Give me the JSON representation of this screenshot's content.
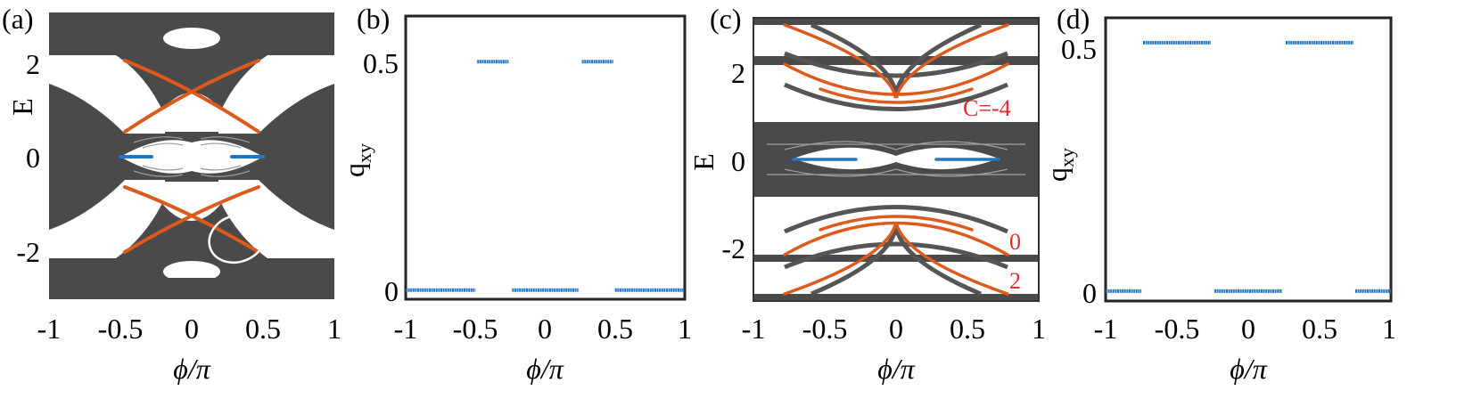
{
  "figure": {
    "colors": {
      "spectrum": "#4a4a4a",
      "edge_orange": "#dd5a1e",
      "q_blue": "#1f77c9",
      "annotation_red": "#e8292b",
      "ring": "#ffffff"
    }
  },
  "chart_data": [
    {
      "panel": "(a)",
      "type": "line",
      "xlabel": "ϕ/π",
      "ylabel": "E",
      "xlim": [
        -1,
        1
      ],
      "ylim": [
        -3,
        3
      ],
      "xticks": [
        "-1",
        "-0.5",
        "0",
        "0.5",
        "1"
      ],
      "yticks": [
        "-2",
        "0",
        "2"
      ],
      "bulk_bands": "dark gray continuum with gaps near E = ±2 and E = 0",
      "series": [
        {
          "style": "orange",
          "x": [
            -0.45,
            0.45
          ],
          "y": [
            1.4,
            1.4
          ],
          "shape": "crossing pair centered at E≈1.05"
        },
        {
          "style": "orange",
          "x": [
            -0.45,
            0.45
          ],
          "y": [
            -1.4,
            -1.4
          ],
          "shape": "crossing pair centered at E≈-1.05"
        },
        {
          "style": "blue",
          "x": [
            -0.45,
            -0.25
          ],
          "y": [
            0,
            0
          ]
        },
        {
          "style": "blue",
          "x": [
            0.25,
            0.45
          ],
          "y": [
            0,
            0
          ]
        }
      ],
      "annotations": [
        "white ellipse marking orange edge state near ϕ/π≈0.32, E≈-1.75"
      ]
    },
    {
      "panel": "(b)",
      "type": "line",
      "xlabel": "ϕ/π",
      "ylabel": "q_xy",
      "xlim": [
        -1,
        1
      ],
      "ylim": [
        -0.02,
        0.6
      ],
      "xticks": [
        "-1",
        "-0.5",
        "0",
        "0.5",
        "1"
      ],
      "yticks": [
        "0",
        "0.5"
      ],
      "series": [
        {
          "name": "",
          "x": [
            -1,
            -0.5
          ],
          "y": [
            0,
            0
          ]
        },
        {
          "name": "",
          "x": [
            -0.5,
            -0.25
          ],
          "y": [
            0.5,
            0.5
          ]
        },
        {
          "name": "",
          "x": [
            -0.25,
            0.25
          ],
          "y": [
            0,
            0
          ]
        },
        {
          "name": "",
          "x": [
            0.25,
            0.5
          ],
          "y": [
            0.5,
            0.5
          ]
        },
        {
          "name": "",
          "x": [
            0.5,
            1
          ],
          "y": [
            0,
            0
          ]
        }
      ]
    },
    {
      "panel": "(c)",
      "type": "line",
      "xlabel": "ϕ/π",
      "ylabel": "E",
      "xlim": [
        -1,
        1
      ],
      "ylim": [
        -3.2,
        3.2
      ],
      "xticks": [
        "-1",
        "-0.5",
        "0",
        "0.5",
        "1"
      ],
      "yticks": [
        "-2",
        "0",
        "2"
      ],
      "annotations": [
        "C=-4",
        "0",
        "2"
      ],
      "series": [
        {
          "style": "blue",
          "x": [
            -0.7,
            -0.3
          ],
          "y": [
            0,
            0
          ]
        },
        {
          "style": "blue",
          "x": [
            0.3,
            0.7
          ],
          "y": [
            0,
            0
          ]
        }
      ]
    },
    {
      "panel": "(d)",
      "type": "line",
      "xlabel": "ϕ/π",
      "ylabel": "q_xy",
      "xlim": [
        -1,
        1
      ],
      "ylim": [
        -0.02,
        0.55
      ],
      "xticks": [
        "-1",
        "-0.5",
        "0",
        "0.5",
        "1"
      ],
      "yticks": [
        "0",
        "0.5"
      ],
      "series": [
        {
          "name": "",
          "x": [
            -1,
            -0.75
          ],
          "y": [
            0,
            0
          ]
        },
        {
          "name": "",
          "x": [
            -0.75,
            -0.25
          ],
          "y": [
            0.5,
            0.5
          ]
        },
        {
          "name": "",
          "x": [
            -0.25,
            0.25
          ],
          "y": [
            0,
            0
          ]
        },
        {
          "name": "",
          "x": [
            0.25,
            0.75
          ],
          "y": [
            0.5,
            0.5
          ]
        },
        {
          "name": "",
          "x": [
            0.75,
            1
          ],
          "y": [
            0,
            0
          ]
        }
      ]
    }
  ]
}
